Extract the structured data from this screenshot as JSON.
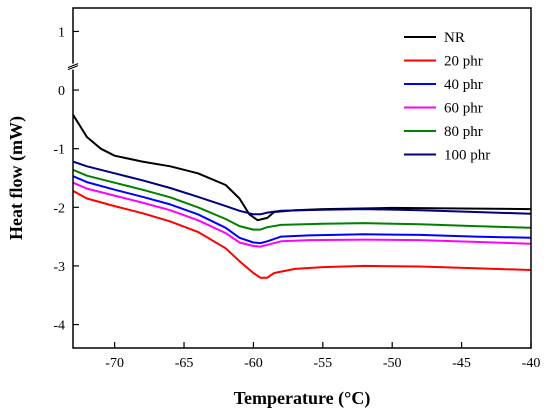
{
  "chart_data": {
    "type": "line",
    "title": "",
    "xlabel": "Temperature (°C)",
    "ylabel": "Heat flow (mW)",
    "xlim": [
      -73,
      -40
    ],
    "ylim": [
      -4.4,
      1.4
    ],
    "x_ticks": [
      -70,
      -65,
      -60,
      -55,
      -50,
      -45,
      -40
    ],
    "y_ticks": [
      1,
      0,
      -1,
      -2,
      -3,
      -4
    ],
    "axis_break": "y-axis between 0 and 1",
    "grid": false,
    "legend_position": "top-right",
    "series": [
      {
        "name": "NR",
        "color": "#000000",
        "points": [
          [
            -73,
            -0.42
          ],
          [
            -72,
            -0.8
          ],
          [
            -71,
            -1.0
          ],
          [
            -70,
            -1.12
          ],
          [
            -68,
            -1.22
          ],
          [
            -66,
            -1.3
          ],
          [
            -64,
            -1.42
          ],
          [
            -62,
            -1.62
          ],
          [
            -61,
            -1.85
          ],
          [
            -60.3,
            -2.12
          ],
          [
            -59.7,
            -2.22
          ],
          [
            -59,
            -2.18
          ],
          [
            -58.5,
            -2.08
          ],
          [
            -57,
            -2.05
          ],
          [
            -55,
            -2.03
          ],
          [
            -50,
            -2.01
          ],
          [
            -45,
            -2.02
          ],
          [
            -40,
            -2.03
          ]
        ]
      },
      {
        "name": "20 phr",
        "color": "#ff0000",
        "points": [
          [
            -73,
            -1.72
          ],
          [
            -72,
            -1.85
          ],
          [
            -70,
            -1.98
          ],
          [
            -68,
            -2.1
          ],
          [
            -66,
            -2.24
          ],
          [
            -64,
            -2.42
          ],
          [
            -62,
            -2.7
          ],
          [
            -61,
            -2.92
          ],
          [
            -60,
            -3.12
          ],
          [
            -59.5,
            -3.2
          ],
          [
            -59,
            -3.2
          ],
          [
            -58.5,
            -3.12
          ],
          [
            -57,
            -3.05
          ],
          [
            -55,
            -3.02
          ],
          [
            -52,
            -3.0
          ],
          [
            -48,
            -3.01
          ],
          [
            -44,
            -3.04
          ],
          [
            -40,
            -3.07
          ]
        ]
      },
      {
        "name": "40 phr",
        "color": "#0000ff",
        "points": [
          [
            -73,
            -1.47
          ],
          [
            -72,
            -1.57
          ],
          [
            -70,
            -1.7
          ],
          [
            -68,
            -1.82
          ],
          [
            -66,
            -1.95
          ],
          [
            -64,
            -2.12
          ],
          [
            -62,
            -2.35
          ],
          [
            -61,
            -2.52
          ],
          [
            -60,
            -2.6
          ],
          [
            -59.5,
            -2.61
          ],
          [
            -59,
            -2.58
          ],
          [
            -58,
            -2.5
          ],
          [
            -56,
            -2.48
          ],
          [
            -52,
            -2.46
          ],
          [
            -48,
            -2.47
          ],
          [
            -44,
            -2.5
          ],
          [
            -40,
            -2.52
          ]
        ]
      },
      {
        "name": "60 phr",
        "color": "#ff00ff",
        "points": [
          [
            -73,
            -1.58
          ],
          [
            -72,
            -1.68
          ],
          [
            -70,
            -1.8
          ],
          [
            -68,
            -1.92
          ],
          [
            -66,
            -2.05
          ],
          [
            -64,
            -2.22
          ],
          [
            -62,
            -2.44
          ],
          [
            -61,
            -2.6
          ],
          [
            -60,
            -2.66
          ],
          [
            -59.5,
            -2.67
          ],
          [
            -59,
            -2.64
          ],
          [
            -58,
            -2.58
          ],
          [
            -56,
            -2.56
          ],
          [
            -52,
            -2.55
          ],
          [
            -48,
            -2.56
          ],
          [
            -44,
            -2.59
          ],
          [
            -40,
            -2.62
          ]
        ]
      },
      {
        "name": "80 phr",
        "color": "#008000",
        "points": [
          [
            -73,
            -1.36
          ],
          [
            -72,
            -1.46
          ],
          [
            -70,
            -1.58
          ],
          [
            -68,
            -1.7
          ],
          [
            -66,
            -1.83
          ],
          [
            -64,
            -2.0
          ],
          [
            -62,
            -2.2
          ],
          [
            -61,
            -2.32
          ],
          [
            -60,
            -2.38
          ],
          [
            -59.5,
            -2.38
          ],
          [
            -59,
            -2.34
          ],
          [
            -58,
            -2.3
          ],
          [
            -55,
            -2.28
          ],
          [
            -52,
            -2.27
          ],
          [
            -48,
            -2.29
          ],
          [
            -44,
            -2.32
          ],
          [
            -40,
            -2.35
          ]
        ]
      },
      {
        "name": "100 phr",
        "color": "#000080",
        "points": [
          [
            -73,
            -1.22
          ],
          [
            -72,
            -1.3
          ],
          [
            -70,
            -1.42
          ],
          [
            -68,
            -1.54
          ],
          [
            -66,
            -1.67
          ],
          [
            -64,
            -1.82
          ],
          [
            -62,
            -1.98
          ],
          [
            -61,
            -2.06
          ],
          [
            -60,
            -2.12
          ],
          [
            -59.5,
            -2.12
          ],
          [
            -59,
            -2.09
          ],
          [
            -58,
            -2.06
          ],
          [
            -55,
            -2.04
          ],
          [
            -52,
            -2.03
          ],
          [
            -48,
            -2.05
          ],
          [
            -44,
            -2.08
          ],
          [
            -40,
            -2.11
          ]
        ]
      }
    ]
  }
}
